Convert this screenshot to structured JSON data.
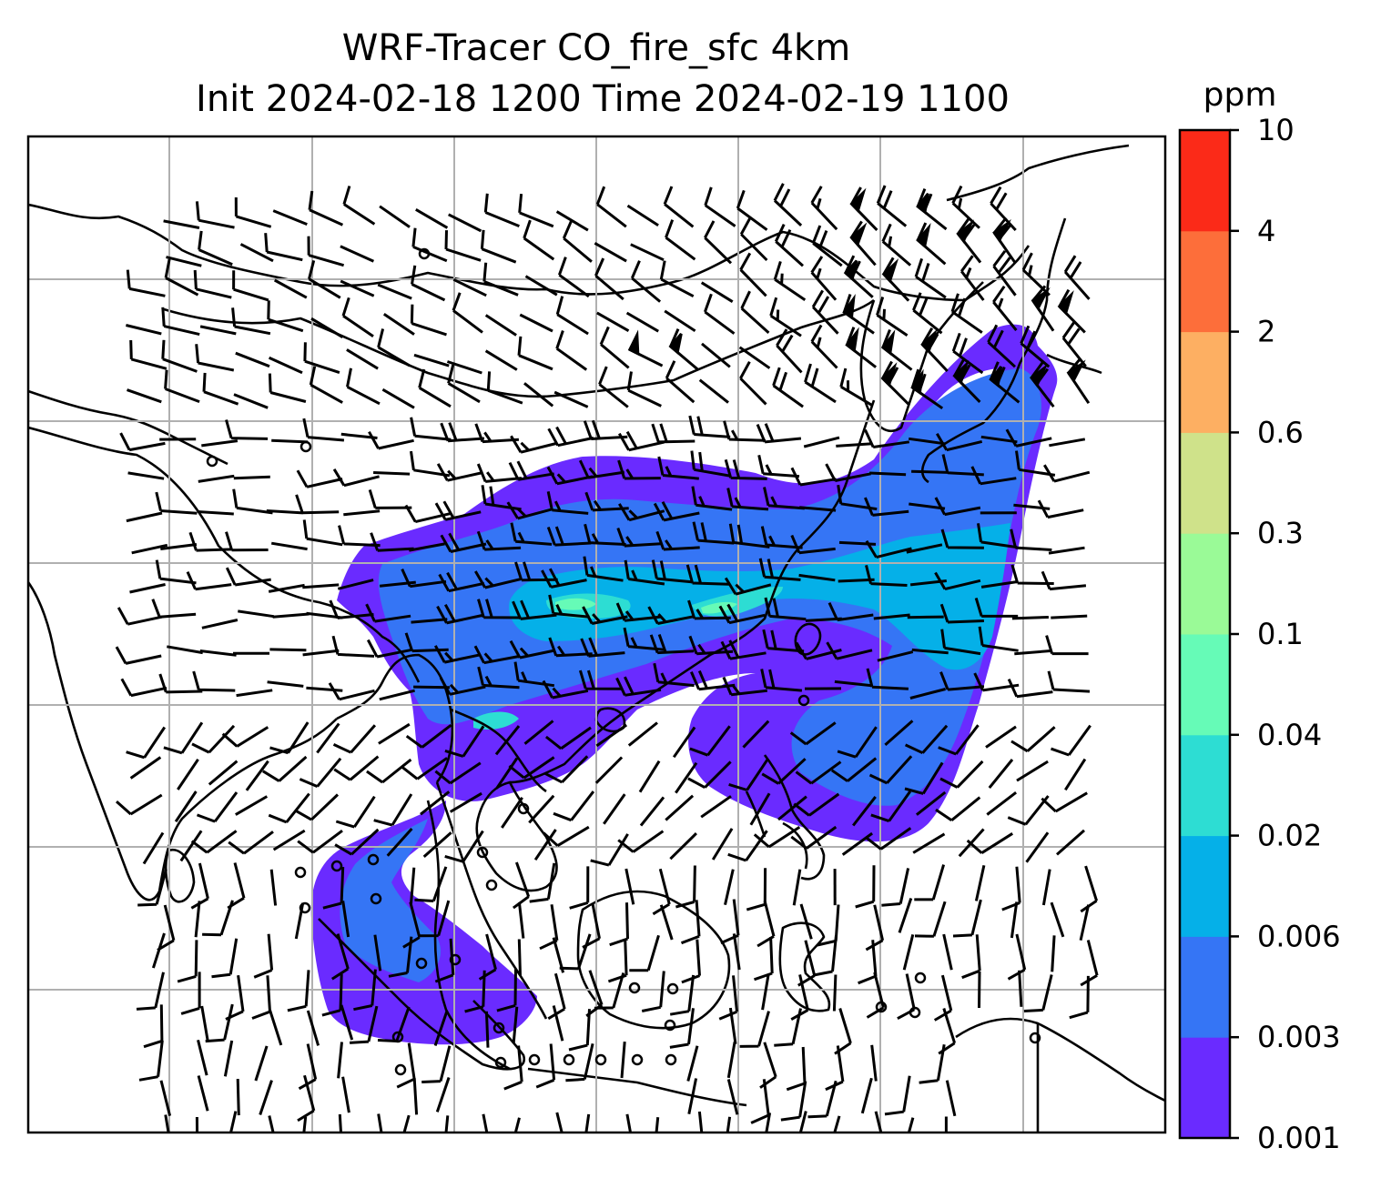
{
  "title": {
    "line1": "WRF-Tracer CO_fire_sfc 4km",
    "line2": "Init 2024-02-18 1200 Time 2024-02-19 1100"
  },
  "colorbar": {
    "unit": "ppm",
    "levels": [
      "0.001",
      "0.003",
      "0.006",
      "0.02",
      "0.04",
      "0.1",
      "0.3",
      "0.6",
      "2",
      "4",
      "10"
    ],
    "colors": [
      "#6a2bff",
      "#3575f5",
      "#05b0e8",
      "#2dddd3",
      "#66fbb7",
      "#9afa97",
      "#cfe28a",
      "#fdaf62",
      "#fd6e3a",
      "#fb2a18"
    ]
  },
  "map": {
    "projection_grid": "lat-lon graticule",
    "field": "CO_fire_sfc",
    "overlay": "wind barbs",
    "colors": {
      "coast": "#000000",
      "grid": "#b0b0b0",
      "barb": "#000000"
    }
  }
}
